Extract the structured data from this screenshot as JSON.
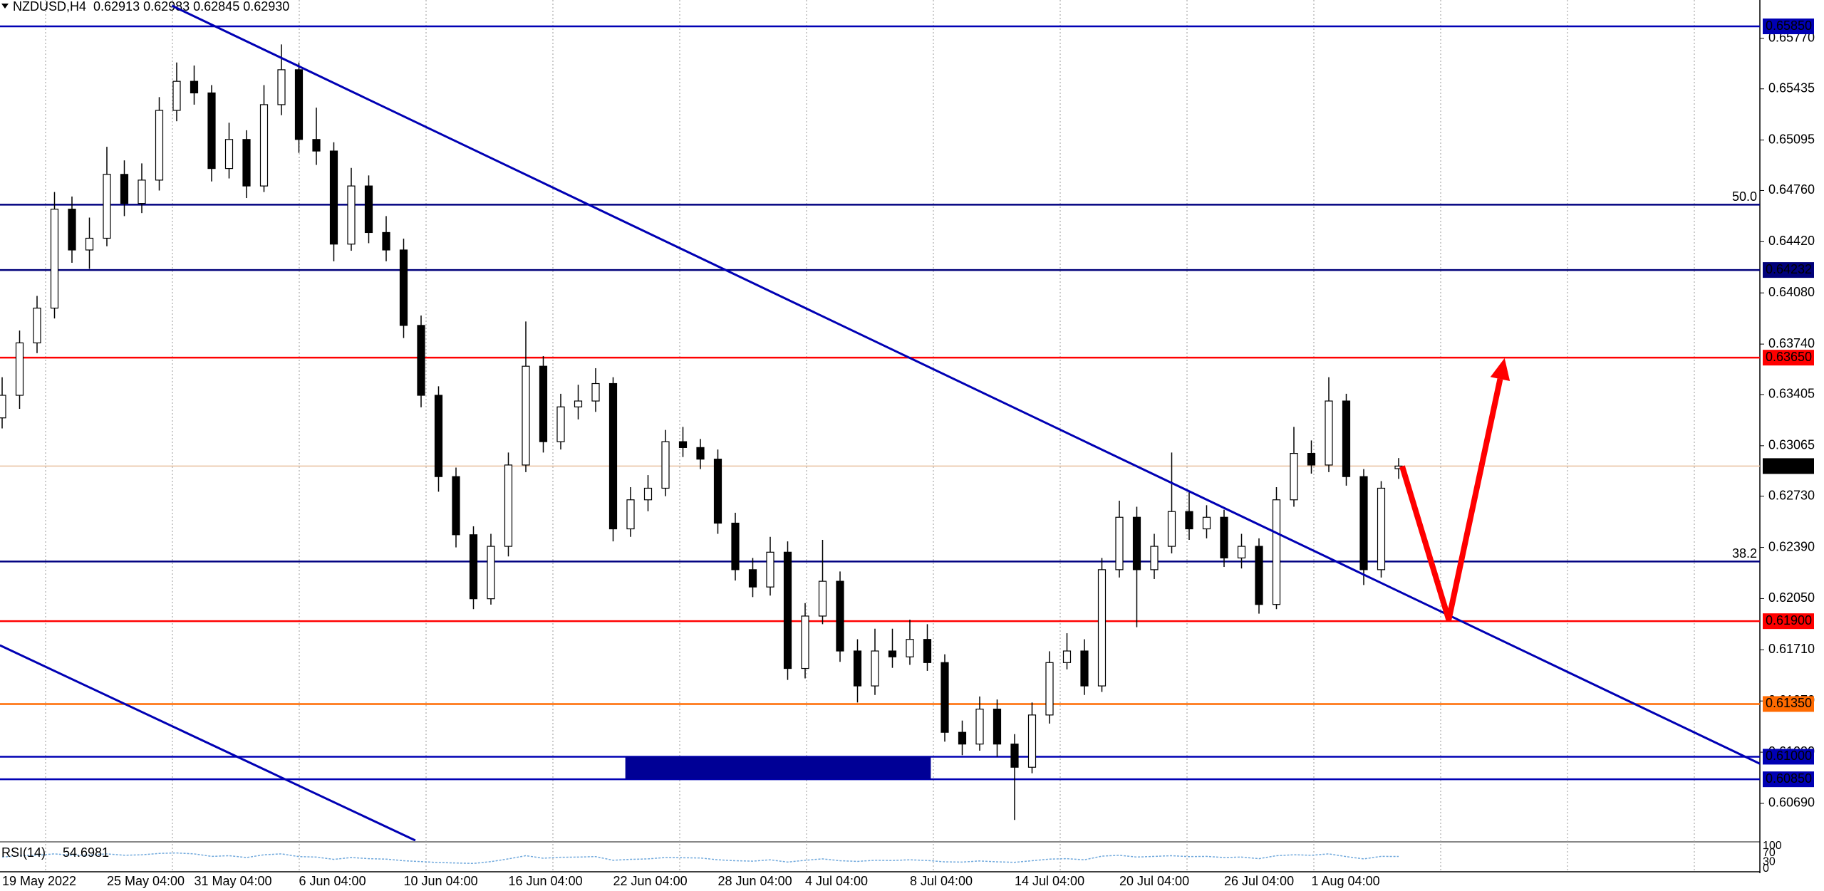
{
  "chart_data": {
    "type": "candlestick",
    "header": "NZDUSD,H4  0.62913 0.62983 0.62845 0.62930",
    "categories": [
      "19 May 2022",
      null,
      null,
      null,
      null,
      null,
      "25 May 04:00",
      null,
      null,
      null,
      null,
      "31 May 04:00",
      null,
      null,
      null,
      null,
      null,
      "6 Jun 04:00",
      null,
      null,
      null,
      null,
      null,
      "10 Jun 04:00",
      null,
      null,
      null,
      null,
      null,
      "16 Jun 04:00",
      null,
      null,
      null,
      null,
      null,
      "22 Jun 04:00",
      null,
      null,
      null,
      null,
      null,
      "28 Jun 04:00",
      null,
      null,
      null,
      null,
      "4 Jul 04:00",
      null,
      null,
      null,
      null,
      null,
      "8 Jul 04:00",
      null,
      null,
      null,
      null,
      null,
      "14 Jul 04:00",
      null,
      null,
      null,
      null,
      null,
      "20 Jul 04:00",
      null,
      null,
      null,
      null,
      null,
      "26 Jul 04:00",
      null,
      null,
      null,
      null,
      "1 Aug 04:00",
      null,
      null,
      null,
      null,
      null
    ],
    "open": [
      0.6325,
      0.634,
      0.63748,
      0.63979,
      0.64636,
      0.64365,
      0.64443,
      0.64867,
      0.64674,
      0.64829,
      0.65292,
      0.65485,
      0.65408,
      0.64906,
      0.65099,
      0.6479,
      0.6533,
      0.65562,
      0.65099,
      0.65022,
      0.64404,
      0.6479,
      0.64481,
      0.64365,
      0.63864,
      0.634,
      0.6286,
      0.62474,
      0.62049,
      0.62397,
      0.62937,
      0.63593,
      0.63092,
      0.63323,
      0.63362,
      0.63478,
      0.62513,
      0.62706,
      0.62783,
      0.63092,
      0.63053,
      0.62976,
      0.62551,
      0.62242,
      0.62127,
      0.62358,
      0.61586,
      0.61934,
      0.62165,
      0.61702,
      0.6147,
      0.61702,
      0.61663,
      0.61779,
      0.61625,
      0.61162,
      0.61084,
      0.61316,
      0.61084,
      0.6093,
      0.61277,
      0.61625,
      0.61702,
      0.6147,
      0.62242,
      0.6259,
      0.62242,
      0.62397,
      0.62628,
      0.62513,
      0.6259,
      0.6232,
      0.62397,
      0.62011,
      0.62706,
      0.63014,
      0.62937,
      0.63362,
      0.6286,
      0.62242,
      0.62913
    ],
    "high": [
      0.6352,
      0.6383,
      0.6406,
      0.6475,
      0.6472,
      0.6458,
      0.6505,
      0.6496,
      0.6494,
      0.6538,
      0.6561,
      0.6559,
      0.6546,
      0.6521,
      0.6516,
      0.6546,
      0.6573,
      0.6561,
      0.6531,
      0.6508,
      0.6491,
      0.6486,
      0.6459,
      0.6444,
      0.6393,
      0.6346,
      0.6292,
      0.6253,
      0.6248,
      0.6302,
      0.6389,
      0.6366,
      0.6341,
      0.6347,
      0.6358,
      0.6352,
      0.6279,
      0.6287,
      0.6317,
      0.6319,
      0.6311,
      0.6304,
      0.6262,
      0.6232,
      0.6246,
      0.6243,
      0.6202,
      0.6244,
      0.6223,
      0.6178,
      0.6185,
      0.6185,
      0.6191,
      0.6188,
      0.6168,
      0.6124,
      0.614,
      0.6138,
      0.6115,
      0.6136,
      0.617,
      0.6182,
      0.6178,
      0.6232,
      0.627,
      0.6266,
      0.6248,
      0.6302,
      0.6276,
      0.6267,
      0.6264,
      0.6248,
      0.6245,
      0.6279,
      0.6319,
      0.631,
      0.6352,
      0.6341,
      0.6291,
      0.6283,
      0.62983
    ],
    "low": [
      0.6318,
      0.6331,
      0.6368,
      0.6391,
      0.6428,
      0.6424,
      0.6439,
      0.6459,
      0.6461,
      0.6476,
      0.6522,
      0.6533,
      0.6482,
      0.6484,
      0.6471,
      0.6475,
      0.6526,
      0.6501,
      0.6493,
      0.6429,
      0.6436,
      0.6441,
      0.6429,
      0.6378,
      0.6332,
      0.6276,
      0.6239,
      0.6198,
      0.6201,
      0.6233,
      0.6289,
      0.6302,
      0.6304,
      0.6324,
      0.6329,
      0.6243,
      0.6246,
      0.6263,
      0.6273,
      0.6299,
      0.6291,
      0.6248,
      0.6217,
      0.6206,
      0.6207,
      0.6151,
      0.6152,
      0.6188,
      0.6163,
      0.6136,
      0.6141,
      0.6159,
      0.6161,
      0.6157,
      0.611,
      0.6101,
      0.6104,
      0.61,
      0.6058,
      0.6089,
      0.6122,
      0.6158,
      0.6141,
      0.6143,
      0.6219,
      0.6186,
      0.6218,
      0.6235,
      0.6244,
      0.6245,
      0.6226,
      0.6225,
      0.6195,
      0.6198,
      0.6266,
      0.6288,
      0.6289,
      0.628,
      0.6214,
      0.6219,
      0.62845
    ],
    "close": [
      0.634,
      0.63748,
      0.63979,
      0.64636,
      0.64365,
      0.64443,
      0.64867,
      0.64674,
      0.64829,
      0.65292,
      0.65485,
      0.65408,
      0.64906,
      0.65099,
      0.6479,
      0.6533,
      0.65562,
      0.65099,
      0.65022,
      0.64404,
      0.6479,
      0.64481,
      0.64365,
      0.63864,
      0.634,
      0.6286,
      0.62474,
      0.62049,
      0.62397,
      0.62937,
      0.63593,
      0.63092,
      0.63323,
      0.63362,
      0.63478,
      0.62513,
      0.62706,
      0.62783,
      0.63092,
      0.63053,
      0.62976,
      0.62551,
      0.62242,
      0.62127,
      0.62358,
      0.61586,
      0.61934,
      0.62165,
      0.61702,
      0.6147,
      0.61702,
      0.61663,
      0.61779,
      0.61625,
      0.61162,
      0.61084,
      0.61316,
      0.61084,
      0.6093,
      0.61277,
      0.61625,
      0.61702,
      0.6147,
      0.62242,
      0.6259,
      0.62242,
      0.62397,
      0.62628,
      0.62513,
      0.6259,
      0.6232,
      0.62397,
      0.62011,
      0.62706,
      0.63014,
      0.62937,
      0.63362,
      0.6286,
      0.62242,
      0.62783,
      0.6293
    ],
    "ylim": [
      0.60444,
      0.66025
    ],
    "yticks": [
      {
        "value": 0.6577,
        "label": "0.65770"
      },
      {
        "value": 0.65435,
        "label": "0.65435"
      },
      {
        "value": 0.65095,
        "label": "0.65095"
      },
      {
        "value": 0.6476,
        "label": "0.64760"
      },
      {
        "value": 0.6442,
        "label": "0.64420"
      },
      {
        "value": 0.6408,
        "label": "0.64080"
      },
      {
        "value": 0.6374,
        "label": "0.63740"
      },
      {
        "value": 0.63405,
        "label": "0.63405"
      },
      {
        "value": 0.63065,
        "label": "0.63065"
      },
      {
        "value": 0.6273,
        "label": "0.62730"
      },
      {
        "value": 0.6239,
        "label": "0.62390"
      },
      {
        "value": 0.6205,
        "label": "0.62050"
      },
      {
        "value": 0.6171,
        "label": "0.61710"
      },
      {
        "value": 0.6137,
        "label": "0.61370"
      },
      {
        "value": 0.6103,
        "label": "0.61030"
      },
      {
        "value": 0.6069,
        "label": "0.60690"
      }
    ],
    "levels": [
      {
        "value": 0.6585,
        "label": "0.65850",
        "color": "#0000b4"
      },
      {
        "value": 0.64232,
        "label": "0.64232",
        "color": "#00007a"
      },
      {
        "value": 0.6365,
        "label": "0.63650",
        "color": "#ff0000"
      },
      {
        "value": 0.619,
        "label": "0.61900",
        "color": "#ff0000"
      },
      {
        "value": 0.6135,
        "label": "0.61350",
        "color": "#ff6a00"
      },
      {
        "value": 0.61,
        "label": "0.61000",
        "color": "#0000b4"
      },
      {
        "value": 0.6085,
        "label": "0.60850",
        "color": "#0000b4"
      }
    ],
    "current_price": {
      "value": 0.6293,
      "label": "0.62930",
      "color": "#e8c0a0"
    },
    "fib_levels": [
      {
        "level": "50.0",
        "price": 0.64666,
        "color": "#000080"
      },
      {
        "level": "38.2",
        "price": 0.62296,
        "color": "#000080"
      }
    ],
    "trendlines": [
      {
        "color": "#0000b4",
        "x": [
          9.73,
          100.7
        ],
        "y": [
          0.65987,
          0.60953
        ]
      },
      {
        "color": "#0000b4",
        "x": [
          -0.13,
          23.67
        ],
        "y": [
          0.6174,
          0.60444
        ]
      }
    ],
    "zone": {
      "color": "#000096",
      "x": [
        35.7,
        53.2
      ],
      "y": [
        0.6085,
        0.61
      ]
    },
    "arrow": {
      "color": "#ff0000",
      "x": [
        80.2,
        82.87,
        86.07
      ],
      "y": [
        0.62929,
        0.6191,
        0.63647
      ]
    },
    "rsi": {
      "name": "RSI(14)",
      "color": "#6fa8dc",
      "ylim": [
        0,
        100
      ],
      "yticks": [
        100,
        70,
        30,
        0
      ],
      "values": [
        52,
        58,
        60,
        66,
        60,
        61,
        66,
        60,
        62,
        68,
        70,
        66,
        55,
        58,
        50,
        62,
        66,
        54,
        52,
        42,
        50,
        45,
        43,
        36,
        32,
        28,
        26,
        24,
        32,
        44,
        58,
        47,
        51,
        52,
        54,
        38,
        42,
        44,
        50,
        49,
        48,
        40,
        36,
        34,
        40,
        30,
        38,
        44,
        36,
        33,
        38,
        37,
        40,
        37,
        31,
        30,
        35,
        31,
        29,
        36,
        43,
        45,
        40,
        56,
        60,
        52,
        55,
        58,
        54,
        55,
        50,
        52,
        45,
        58,
        62,
        60,
        66,
        54,
        44,
        55,
        54.6981
      ]
    }
  }
}
